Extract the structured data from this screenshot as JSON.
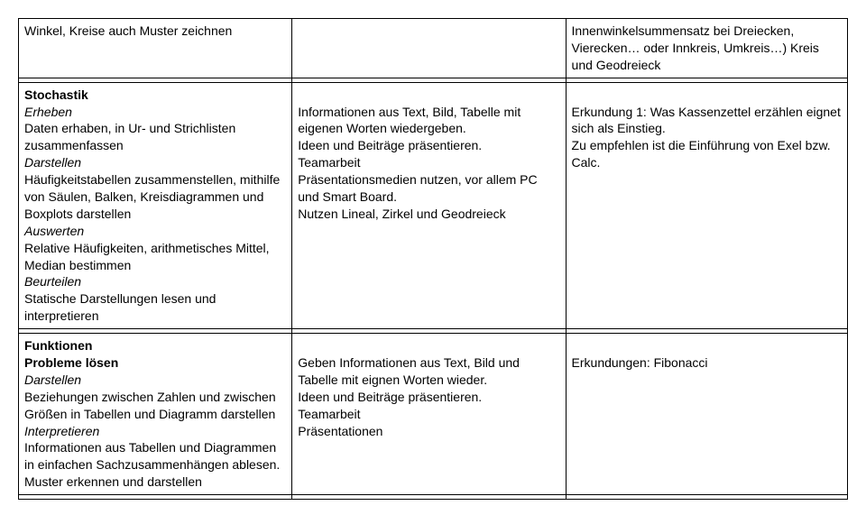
{
  "row1": {
    "c1": "Winkel, Kreise auch Muster zeichnen",
    "c3": "Innenwinkelsummensatz bei Dreiecken, Vierecken… oder Innkreis, Umkreis…) Kreis und Geodreieck"
  },
  "stochastik": {
    "c1": {
      "heading": "Stochastik",
      "sub1": "Erheben",
      "t1a": "Daten erhaben, in Ur- und Strichlisten zusammenfassen",
      "sub2": "Darstellen",
      "t2a": "Häufigkeitstabellen zusammenstellen, mithilfe von Säulen, Balken, Kreisdiagrammen und Boxplots darstellen",
      "sub3": "Auswerten",
      "t3a": "Relative Häufigkeiten, arithmetisches Mittel, Median bestimmen",
      "sub4": "Beurteilen",
      "t4a": "Statische Darstellungen lesen und interpretieren"
    },
    "c2": {
      "t1": "Informationen aus Text, Bild, Tabelle mit eigenen Worten wiedergeben.",
      "t2": "Ideen und Beiträge präsentieren.",
      "t3": "Teamarbeit",
      "t4": "Präsentationsmedien nutzen, vor allem PC und Smart Board.",
      "t5": "Nutzen  Lineal, Zirkel und Geodreieck"
    },
    "c3": {
      "t1": "Erkundung 1: Was Kassenzettel erzählen eignet sich als Einstieg.",
      "t2": "Zu empfehlen ist die Einführung von Exel bzw. Calc."
    }
  },
  "funktionen": {
    "c1": {
      "heading": "Funktionen",
      "sub1": "Probleme lösen",
      "sub2": "Darstellen",
      "t2a": "Beziehungen zwischen Zahlen und zwischen Größen in Tabellen und Diagramm darstellen",
      "sub3": "Interpretieren",
      "t3a": "Informationen aus Tabellen und Diagrammen in einfachen Sachzusammenhängen ablesen.",
      "t3b": "Muster erkennen und darstellen"
    },
    "c2": {
      "t1": "Geben Informationen aus Text, Bild und Tabelle mit eignen Worten wieder.",
      "t2": "Ideen und Beiträge präsentieren.",
      "t3": "Teamarbeit",
      "t4": "Präsentationen"
    },
    "c3": {
      "t1": "Erkundungen: Fibonacci"
    }
  }
}
